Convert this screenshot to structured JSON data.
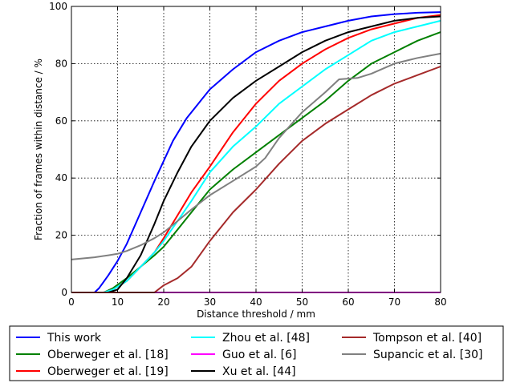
{
  "chart_data": {
    "type": "line",
    "title": "",
    "xlabel": "Distance threshold / mm",
    "ylabel": "Fraction of frames within distance / %",
    "xlim": [
      0,
      80
    ],
    "ylim": [
      0,
      100
    ],
    "xticks": [
      "0",
      "10",
      "20",
      "30",
      "40",
      "50",
      "60",
      "70",
      "80"
    ],
    "yticks": [
      "0",
      "20",
      "40",
      "60",
      "80",
      "100"
    ],
    "grid": true,
    "legend_position": "bottom",
    "series": [
      {
        "name": "This work",
        "color": "#0000ff",
        "x": [
          0,
          5,
          6,
          8,
          10,
          12,
          15,
          18,
          20,
          22,
          25,
          28,
          30,
          35,
          40,
          45,
          50,
          55,
          60,
          65,
          70,
          75,
          80
        ],
        "y": [
          0,
          0,
          1.5,
          6,
          11,
          17,
          28,
          39,
          46,
          53,
          61,
          67,
          71,
          78,
          84,
          88,
          91,
          93,
          95,
          96.5,
          97.3,
          97.8,
          98
        ]
      },
      {
        "name": "Oberweger et al. [18]",
        "color": "#008000",
        "x": [
          0,
          7,
          9,
          12,
          15,
          18,
          20,
          23,
          26,
          30,
          35,
          40,
          45,
          50,
          55,
          60,
          65,
          70,
          75,
          80
        ],
        "y": [
          0,
          0,
          1.5,
          5,
          9,
          13,
          16,
          22,
          28,
          36,
          43,
          49,
          55,
          61,
          67,
          74,
          80,
          84,
          88,
          91
        ]
      },
      {
        "name": "Oberweger et al. [19]",
        "color": "#ff0000",
        "x": [
          0,
          7,
          9,
          12,
          15,
          18,
          20,
          23,
          26,
          30,
          35,
          40,
          45,
          50,
          55,
          60,
          65,
          70,
          75,
          80
        ],
        "y": [
          0,
          0,
          1,
          4,
          9,
          14,
          19,
          27,
          35,
          44,
          56,
          66,
          74,
          80,
          85,
          89,
          92,
          94,
          96,
          97
        ]
      },
      {
        "name": "Zhou et al. [48]",
        "color": "#00ffff",
        "x": [
          0,
          7,
          9,
          12,
          15,
          18,
          20,
          23,
          26,
          30,
          35,
          40,
          45,
          50,
          55,
          60,
          65,
          70,
          75,
          80
        ],
        "y": [
          0,
          0,
          1,
          4,
          9,
          14,
          18,
          25,
          32,
          42,
          51,
          58,
          66,
          72,
          78,
          83,
          88,
          91,
          93,
          95
        ]
      },
      {
        "name": "Guo et al. [6]",
        "color": "#ff00ff",
        "x": [
          0,
          80
        ],
        "y": [
          0,
          0
        ]
      },
      {
        "name": "Xu et al. [44]",
        "color": "#000000",
        "x": [
          0,
          8,
          10,
          12,
          15,
          18,
          20,
          23,
          26,
          30,
          35,
          40,
          45,
          50,
          55,
          60,
          65,
          70,
          75,
          80
        ],
        "y": [
          0,
          0,
          1,
          5,
          13,
          24,
          32,
          42,
          51,
          60,
          68,
          74,
          79,
          84,
          88,
          91,
          93,
          95,
          96,
          96.5
        ]
      },
      {
        "name": "Tompson et al. [40]",
        "color": "#a52a2a",
        "x": [
          0,
          18,
          20,
          23,
          26,
          30,
          35,
          40,
          45,
          50,
          55,
          60,
          65,
          70,
          75,
          80
        ],
        "y": [
          0,
          0,
          2.5,
          5,
          9,
          18,
          28,
          36,
          45,
          53,
          59,
          64,
          69,
          73,
          76,
          79
        ]
      },
      {
        "name": "Supancic et al. [30]",
        "color": "#808080",
        "x": [
          0,
          5,
          8,
          10,
          12,
          15,
          18,
          20,
          23,
          26,
          30,
          35,
          40,
          42,
          45,
          50,
          55,
          58,
          62,
          65,
          70,
          75,
          80
        ],
        "y": [
          11.5,
          12.3,
          13,
          13.5,
          14.5,
          16.5,
          19,
          21,
          25,
          29,
          34,
          39,
          44,
          47,
          54,
          63,
          70,
          74.5,
          75,
          76.5,
          80,
          82,
          83.5
        ]
      }
    ]
  }
}
